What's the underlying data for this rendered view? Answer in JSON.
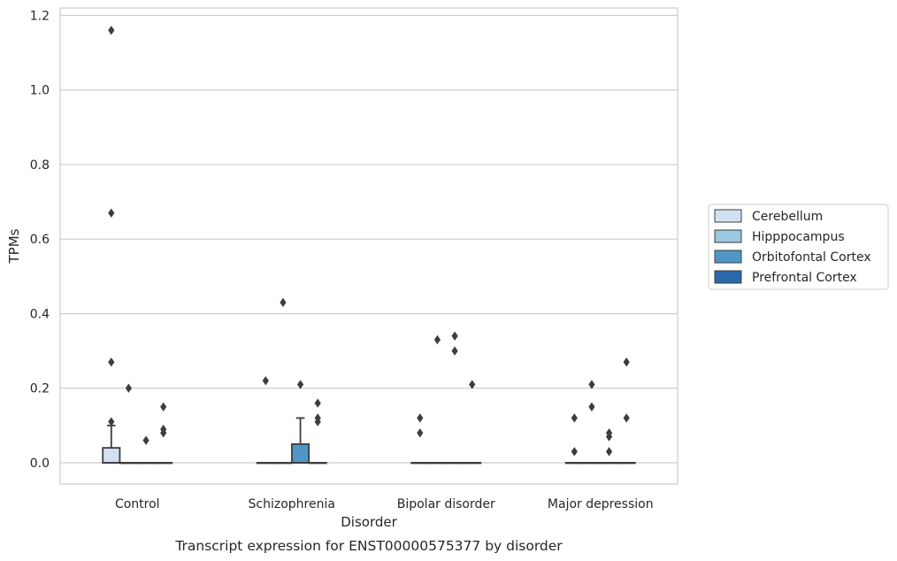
{
  "chart_data": {
    "type": "box",
    "xlabel": "Disorder",
    "ylabel": "TPMs",
    "caption": "Transcript expression for ENST00000575377 by disorder",
    "ylim": [
      -0.057,
      1.22
    ],
    "yticks": [
      0.0,
      0.2,
      0.4,
      0.6,
      0.8,
      1.0,
      1.2
    ],
    "ytick_labels": [
      "0.0",
      "0.2",
      "0.4",
      "0.6",
      "0.8",
      "1.0",
      "1.2"
    ],
    "grid": true,
    "legend_position": "right",
    "categories": [
      "Control",
      "Schizophrenia",
      "Bipolar disorder",
      "Major depression"
    ],
    "series": [
      {
        "name": "Cerebellum",
        "color": "#d0e1f2",
        "boxes": [
          {
            "q1": 0.0,
            "median": 0.0,
            "q3": 0.04,
            "whisker_low": 0.0,
            "whisker_high": 0.1,
            "outliers": [
              0.11,
              0.27,
              0.67,
              1.16
            ]
          },
          {
            "q1": 0.0,
            "median": 0.0,
            "q3": 0.0,
            "whisker_low": 0.0,
            "whisker_high": 0.0,
            "outliers": [
              0.22
            ]
          },
          {
            "q1": 0.0,
            "median": 0.0,
            "q3": 0.0,
            "whisker_low": 0.0,
            "whisker_high": 0.0,
            "outliers": [
              0.08,
              0.12
            ]
          },
          {
            "q1": 0.0,
            "median": 0.0,
            "q3": 0.0,
            "whisker_low": 0.0,
            "whisker_high": 0.0,
            "outliers": [
              0.03,
              0.12
            ]
          }
        ]
      },
      {
        "name": "Hipppocampus",
        "color": "#9ac8e0",
        "boxes": [
          {
            "q1": 0.0,
            "median": 0.0,
            "q3": 0.0,
            "whisker_low": 0.0,
            "whisker_high": 0.0,
            "outliers": [
              0.2
            ]
          },
          {
            "q1": 0.0,
            "median": 0.0,
            "q3": 0.0,
            "whisker_low": 0.0,
            "whisker_high": 0.0,
            "outliers": [
              0.43
            ]
          },
          {
            "q1": 0.0,
            "median": 0.0,
            "q3": 0.0,
            "whisker_low": 0.0,
            "whisker_high": 0.0,
            "outliers": [
              0.33
            ]
          },
          {
            "q1": 0.0,
            "median": 0.0,
            "q3": 0.0,
            "whisker_low": 0.0,
            "whisker_high": 0.0,
            "outliers": [
              0.15,
              0.21
            ]
          }
        ]
      },
      {
        "name": "Orbitofontal Cortex",
        "color": "#5096c7",
        "boxes": [
          {
            "q1": 0.0,
            "median": 0.0,
            "q3": 0.0,
            "whisker_low": 0.0,
            "whisker_high": 0.0,
            "outliers": [
              0.06
            ]
          },
          {
            "q1": 0.0,
            "median": 0.0,
            "q3": 0.05,
            "whisker_low": 0.0,
            "whisker_high": 0.12,
            "outliers": [
              0.21
            ]
          },
          {
            "q1": 0.0,
            "median": 0.0,
            "q3": 0.0,
            "whisker_low": 0.0,
            "whisker_high": 0.0,
            "outliers": [
              0.3,
              0.34
            ]
          },
          {
            "q1": 0.0,
            "median": 0.0,
            "q3": 0.0,
            "whisker_low": 0.0,
            "whisker_high": 0.0,
            "outliers": [
              0.03,
              0.07,
              0.08
            ]
          }
        ]
      },
      {
        "name": "Prefrontal Cortex",
        "color": "#2a69ac",
        "boxes": [
          {
            "q1": 0.0,
            "median": 0.0,
            "q3": 0.0,
            "whisker_low": 0.0,
            "whisker_high": 0.0,
            "outliers": [
              0.08,
              0.09,
              0.15
            ]
          },
          {
            "q1": 0.0,
            "median": 0.0,
            "q3": 0.0,
            "whisker_low": 0.0,
            "whisker_high": 0.0,
            "outliers": [
              0.11,
              0.12,
              0.16
            ]
          },
          {
            "q1": 0.0,
            "median": 0.0,
            "q3": 0.0,
            "whisker_low": 0.0,
            "whisker_high": 0.0,
            "outliers": [
              0.21
            ]
          },
          {
            "q1": 0.0,
            "median": 0.0,
            "q3": 0.0,
            "whisker_low": 0.0,
            "whisker_high": 0.0,
            "outliers": [
              0.12,
              0.27
            ]
          }
        ]
      }
    ]
  }
}
